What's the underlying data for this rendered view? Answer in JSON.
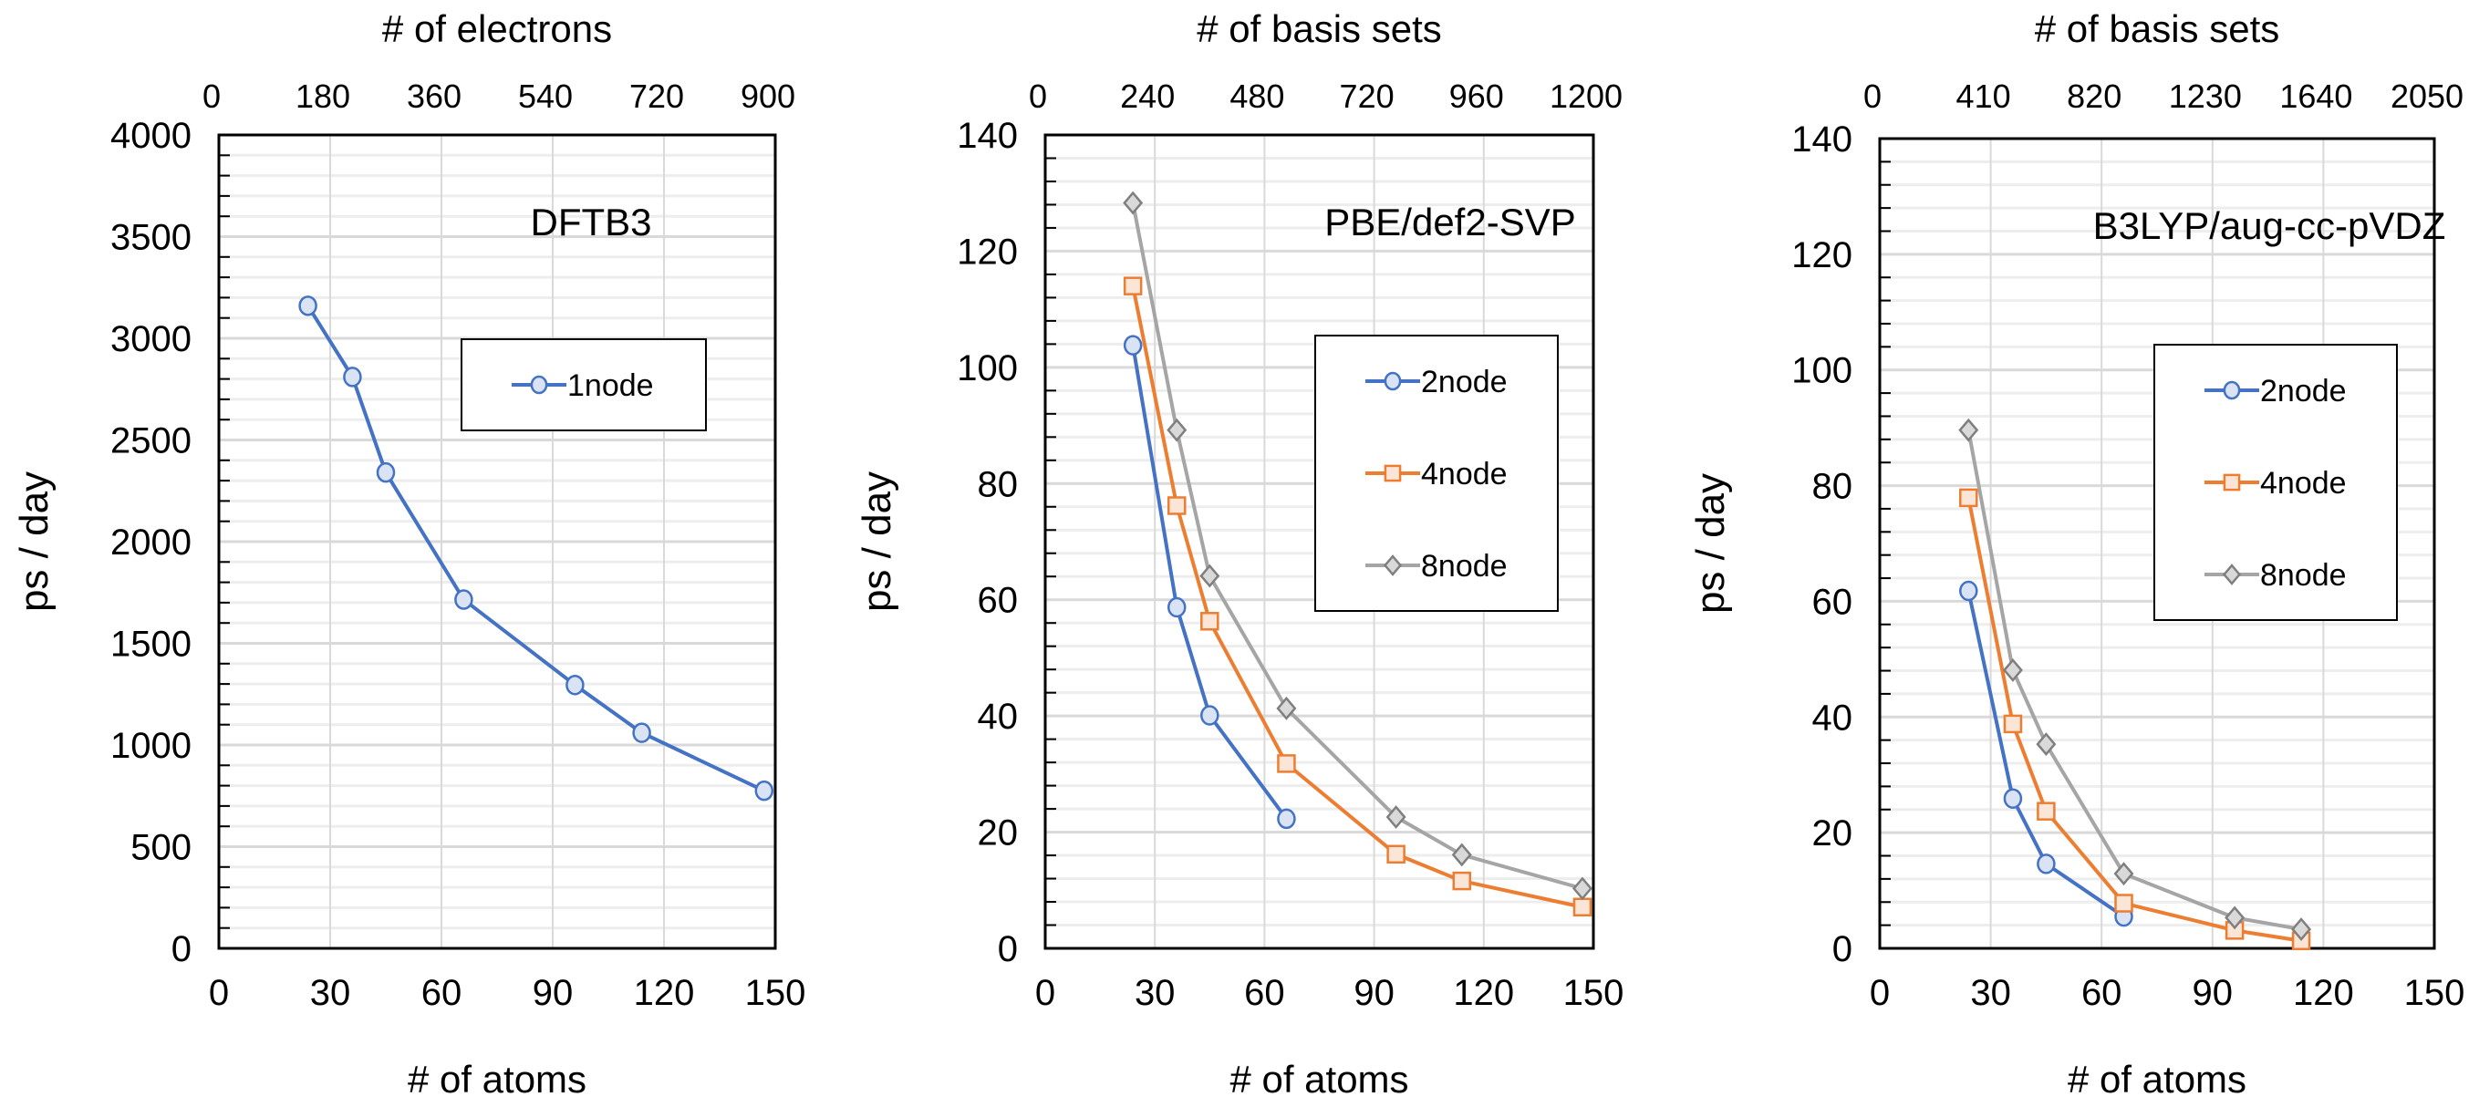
{
  "chart_data": [
    {
      "type": "line",
      "title": "DFTB3",
      "xlabel": "# of atoms",
      "ylabel": "ps / day",
      "x2label": "# of electrons",
      "xlim": [
        0,
        150
      ],
      "xticks": [
        "0",
        "30",
        "60",
        "90",
        "120",
        "150"
      ],
      "x2ticks": [
        "0",
        "180",
        "360",
        "540",
        "720",
        "900"
      ],
      "ylim": [
        0,
        4000
      ],
      "yticks": [
        "0",
        "500",
        "1000",
        "1500",
        "2000",
        "2500",
        "3000",
        "3500",
        "4000"
      ],
      "grid": true,
      "legend": "center-right",
      "series": [
        {
          "name": "1node",
          "color": "#4472C4",
          "marker": "circle",
          "x": [
            24,
            36,
            45,
            66,
            96,
            114,
            147
          ],
          "y": [
            3160,
            2810,
            2340,
            1715,
            1295,
            1060,
            775
          ]
        }
      ]
    },
    {
      "type": "line",
      "title": "PBE/def2-SVP",
      "xlabel": "# of atoms",
      "ylabel": "ps / day",
      "x2label": "# of basis sets",
      "xlim": [
        0,
        150
      ],
      "xticks": [
        "0",
        "30",
        "60",
        "90",
        "120",
        "150"
      ],
      "x2ticks": [
        "0",
        "240",
        "480",
        "720",
        "960",
        "1200"
      ],
      "ylim": [
        0,
        140
      ],
      "yticks": [
        "0",
        "20",
        "40",
        "60",
        "80",
        "100",
        "120",
        "140"
      ],
      "grid": true,
      "legend": "center-right",
      "series": [
        {
          "name": "2node",
          "color": "#4472C4",
          "marker": "circle",
          "x": [
            24,
            36,
            45,
            66
          ],
          "y": [
            103.8,
            58.7,
            40.1,
            22.3
          ]
        },
        {
          "name": "4node",
          "color": "#ED7D31",
          "marker": "square",
          "x": [
            24,
            36,
            45,
            66,
            96,
            114,
            147
          ],
          "y": [
            114,
            76.2,
            56.3,
            31.8,
            16.2,
            11.6,
            7.1
          ]
        },
        {
          "name": "8node",
          "color": "#A5A5A5",
          "marker": "diamond",
          "x": [
            24,
            36,
            45,
            66,
            96,
            114,
            147
          ],
          "y": [
            128.3,
            89.2,
            64.1,
            41.3,
            22.6,
            16.1,
            10.3
          ]
        }
      ]
    },
    {
      "type": "line",
      "title": "B3LYP/aug-cc-pVDZ",
      "xlabel": "# of atoms",
      "ylabel": "ps / day",
      "x2label": "# of basis sets",
      "xlim": [
        0,
        150
      ],
      "xticks": [
        "0",
        "30",
        "60",
        "90",
        "120",
        "150"
      ],
      "x2ticks": [
        "0",
        "410",
        "820",
        "1230",
        "1640",
        "2050"
      ],
      "ylim": [
        0,
        140
      ],
      "yticks": [
        "0",
        "20",
        "40",
        "60",
        "80",
        "100",
        "120",
        "140"
      ],
      "grid": true,
      "legend": "center-right",
      "series": [
        {
          "name": "2node",
          "color": "#4472C4",
          "marker": "circle",
          "x": [
            24,
            36,
            45,
            66
          ],
          "y": [
            61.8,
            25.9,
            14.6,
            5.5
          ]
        },
        {
          "name": "4node",
          "color": "#ED7D31",
          "marker": "square",
          "x": [
            24,
            36,
            45,
            66,
            96,
            114
          ],
          "y": [
            77.9,
            38.8,
            23.7,
            7.8,
            3.1,
            1.3
          ]
        },
        {
          "name": "8node",
          "color": "#A5A5A5",
          "marker": "diamond",
          "x": [
            24,
            36,
            45,
            66,
            96,
            114
          ],
          "y": [
            89.6,
            48.1,
            35.3,
            12.9,
            5.3,
            3.3
          ]
        }
      ]
    }
  ]
}
